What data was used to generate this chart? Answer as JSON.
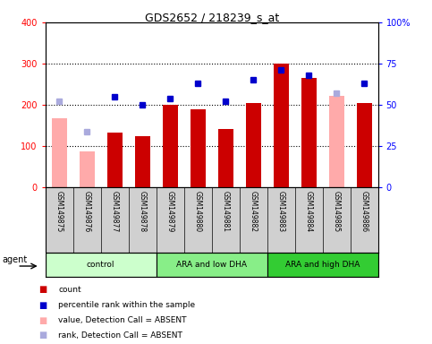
{
  "title": "GDS2652 / 218239_s_at",
  "samples": [
    "GSM149875",
    "GSM149876",
    "GSM149877",
    "GSM149878",
    "GSM149879",
    "GSM149880",
    "GSM149881",
    "GSM149882",
    "GSM149883",
    "GSM149884",
    "GSM149885",
    "GSM149886"
  ],
  "bar_values": [
    null,
    null,
    133,
    124,
    200,
    190,
    141,
    204,
    300,
    265,
    null,
    205
  ],
  "absent_bar_values": [
    168,
    88,
    null,
    null,
    null,
    null,
    null,
    null,
    null,
    null,
    222,
    null
  ],
  "percentile_values": [
    null,
    null,
    55,
    50,
    54,
    63,
    52,
    65,
    71,
    68,
    null,
    63
  ],
  "absent_rank_values": [
    52,
    34,
    null,
    null,
    null,
    null,
    null,
    null,
    null,
    null,
    57,
    null
  ],
  "bar_color": "#cc0000",
  "absent_bar_color": "#ffaaaa",
  "percentile_color": "#0000cc",
  "absent_rank_color": "#aaaadd",
  "ylim_left": [
    0,
    400
  ],
  "ylim_right": [
    0,
    100
  ],
  "yticks_left": [
    0,
    100,
    200,
    300,
    400
  ],
  "ytick_labels_left": [
    "0",
    "100",
    "200",
    "300",
    "400"
  ],
  "yticks_right": [
    0,
    25,
    50,
    75,
    100
  ],
  "ytick_labels_right": [
    "0",
    "25",
    "50",
    "75",
    "100%"
  ],
  "groups": [
    {
      "label": "control",
      "start": 0,
      "end": 3,
      "color": "#ccffcc"
    },
    {
      "label": "ARA and low DHA",
      "start": 4,
      "end": 7,
      "color": "#88ee88"
    },
    {
      "label": "ARA and high DHA",
      "start": 8,
      "end": 11,
      "color": "#33cc33"
    }
  ],
  "legend": [
    {
      "label": "count",
      "color": "#cc0000"
    },
    {
      "label": "percentile rank within the sample",
      "color": "#0000cc"
    },
    {
      "label": "value, Detection Call = ABSENT",
      "color": "#ffaaaa"
    },
    {
      "label": "rank, Detection Call = ABSENT",
      "color": "#aaaadd"
    }
  ],
  "xlabel_area_color": "#d0d0d0",
  "bar_width": 0.55
}
